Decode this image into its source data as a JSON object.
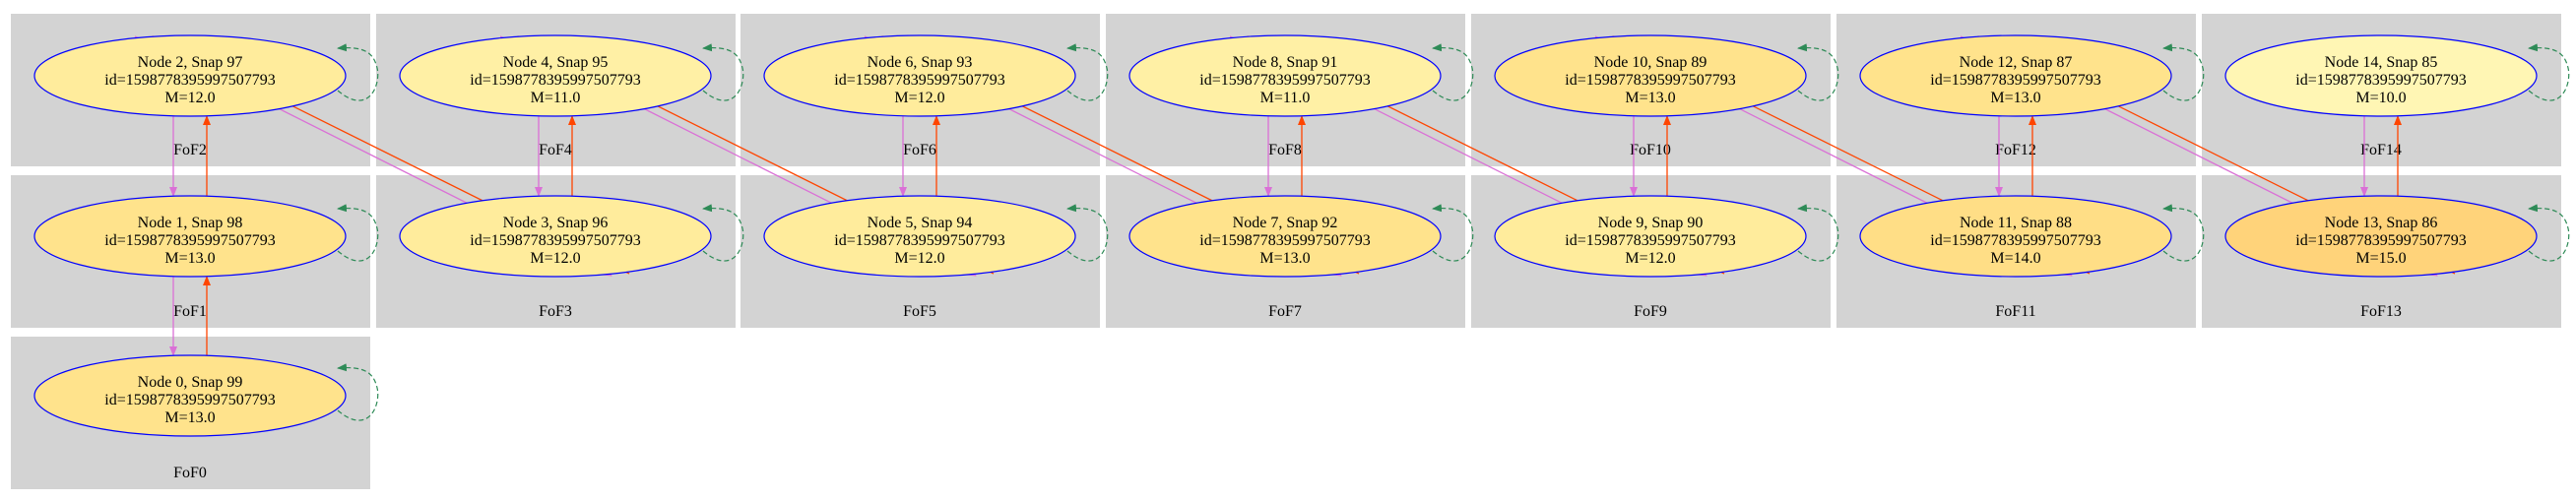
{
  "colors": {
    "cluster_fill": "#d3d3d3",
    "node_stroke": "#0000ff",
    "edge_forward": "#ff4500",
    "edge_backward": "#da70d6",
    "self_loop": "#2e8b57",
    "node_fill_M10": "#fff6b4",
    "node_fill_M11": "#fff0a5",
    "node_fill_M12": "#ffec9c",
    "node_fill_M13": "#ffe38c",
    "node_fill_M14": "#ffde86",
    "node_fill_M15": "#ffd37a"
  },
  "clusters": [
    {
      "id": "fof0",
      "label": "FoF0"
    },
    {
      "id": "fof1",
      "label": "FoF1"
    },
    {
      "id": "fof2",
      "label": "FoF2"
    },
    {
      "id": "fof3",
      "label": "FoF3"
    },
    {
      "id": "fof4",
      "label": "FoF4"
    },
    {
      "id": "fof5",
      "label": "FoF5"
    },
    {
      "id": "fof6",
      "label": "FoF6"
    },
    {
      "id": "fof7",
      "label": "FoF7"
    },
    {
      "id": "fof8",
      "label": "FoF8"
    },
    {
      "id": "fof9",
      "label": "FoF9"
    },
    {
      "id": "fof10",
      "label": "FoF10"
    },
    {
      "id": "fof11",
      "label": "FoF11"
    },
    {
      "id": "fof12",
      "label": "FoF12"
    },
    {
      "id": "fof13",
      "label": "FoF13"
    },
    {
      "id": "fof14",
      "label": "FoF14"
    }
  ],
  "nodes": [
    {
      "num": 0,
      "title": "Node 0, Snap 99",
      "id_line": "id=1598778395997507793",
      "mass_line": "M=13.0",
      "mass": 13
    },
    {
      "num": 1,
      "title": "Node 1, Snap 98",
      "id_line": "id=1598778395997507793",
      "mass_line": "M=13.0",
      "mass": 13
    },
    {
      "num": 2,
      "title": "Node 2, Snap 97",
      "id_line": "id=1598778395997507793",
      "mass_line": "M=12.0",
      "mass": 12
    },
    {
      "num": 3,
      "title": "Node 3, Snap 96",
      "id_line": "id=1598778395997507793",
      "mass_line": "M=12.0",
      "mass": 12
    },
    {
      "num": 4,
      "title": "Node 4, Snap 95",
      "id_line": "id=1598778395997507793",
      "mass_line": "M=11.0",
      "mass": 11
    },
    {
      "num": 5,
      "title": "Node 5, Snap 94",
      "id_line": "id=1598778395997507793",
      "mass_line": "M=12.0",
      "mass": 12
    },
    {
      "num": 6,
      "title": "Node 6, Snap 93",
      "id_line": "id=1598778395997507793",
      "mass_line": "M=12.0",
      "mass": 12
    },
    {
      "num": 7,
      "title": "Node 7, Snap 92",
      "id_line": "id=1598778395997507793",
      "mass_line": "M=13.0",
      "mass": 13
    },
    {
      "num": 8,
      "title": "Node 8, Snap 91",
      "id_line": "id=1598778395997507793",
      "mass_line": "M=11.0",
      "mass": 11
    },
    {
      "num": 9,
      "title": "Node 9, Snap 90",
      "id_line": "id=1598778395997507793",
      "mass_line": "M=12.0",
      "mass": 12
    },
    {
      "num": 10,
      "title": "Node 10, Snap 89",
      "id_line": "id=1598778395997507793",
      "mass_line": "M=13.0",
      "mass": 13
    },
    {
      "num": 11,
      "title": "Node 11, Snap 88",
      "id_line": "id=1598778395997507793",
      "mass_line": "M=14.0",
      "mass": 14
    },
    {
      "num": 12,
      "title": "Node 12, Snap 87",
      "id_line": "id=1598778395997507793",
      "mass_line": "M=13.0",
      "mass": 13
    },
    {
      "num": 13,
      "title": "Node 13, Snap 86",
      "id_line": "id=1598778395997507793",
      "mass_line": "M=15.0",
      "mass": 15
    },
    {
      "num": 14,
      "title": "Node 14, Snap 85",
      "id_line": "id=1598778395997507793",
      "mass_line": "M=10.0",
      "mass": 10
    }
  ],
  "edges": [
    {
      "from": 0,
      "to": 1
    },
    {
      "from": 1,
      "to": 2
    },
    {
      "from": 2,
      "to": 3
    },
    {
      "from": 3,
      "to": 4
    },
    {
      "from": 4,
      "to": 5
    },
    {
      "from": 5,
      "to": 6
    },
    {
      "from": 6,
      "to": 7
    },
    {
      "from": 7,
      "to": 8
    },
    {
      "from": 8,
      "to": 9
    },
    {
      "from": 9,
      "to": 10
    },
    {
      "from": 10,
      "to": 11
    },
    {
      "from": 11,
      "to": 12
    },
    {
      "from": 12,
      "to": 13
    },
    {
      "from": 13,
      "to": 14
    }
  ]
}
